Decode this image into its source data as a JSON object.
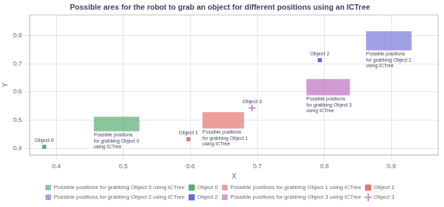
{
  "chart_data": {
    "type": "scatter",
    "title": "Possible ares for the robot to grab an object for different positions using an ICTree",
    "xlabel": "X",
    "ylabel": "Y",
    "xlim": [
      0.36,
      0.97
    ],
    "ylim": [
      0.375,
      0.875
    ],
    "xticks": [
      0.4,
      0.5,
      0.6,
      0.7,
      0.8,
      0.9
    ],
    "yticks": [
      0.4,
      0.5,
      0.6,
      0.7,
      0.8
    ],
    "grid": true,
    "legend": "bottom",
    "series": [
      {
        "name": "Possible positions for grabbing Object 0 using ICTree",
        "type": "rectangle",
        "color": "#5aac74",
        "x": 0.456,
        "y": 0.46,
        "width": 0.068,
        "height": 0.052,
        "annotation": "Possible positions\nfor grabbing Object 0\nusing ICTree"
      },
      {
        "name": "Object 0",
        "type": "scatter",
        "color": "#5aac74",
        "marker": "square",
        "x": [
          0.382
        ],
        "y": [
          0.405
        ],
        "labels": [
          "Object 0"
        ]
      },
      {
        "name": "Possible positions for grabbing Object 1 using ICTree",
        "type": "rectangle",
        "color": "#e87575",
        "x": 0.618,
        "y": 0.47,
        "width": 0.062,
        "height": 0.058,
        "annotation": "Possible positions\nfor grabbing Object 1\nusing ICTree"
      },
      {
        "name": "Object 1",
        "type": "scatter",
        "color": "#e87575",
        "marker": "square",
        "x": [
          0.597
        ],
        "y": [
          0.432
        ],
        "labels": [
          "Object 1"
        ]
      },
      {
        "name": "Possible positions for grabbing Object 2 using ICTree",
        "type": "rectangle",
        "color": "#7878d8",
        "x": 0.862,
        "y": 0.748,
        "width": 0.068,
        "height": 0.068,
        "annotation": "Possible positions\nfor grabbing Object 2\nusing ICTree"
      },
      {
        "name": "Object 2",
        "type": "scatter",
        "color": "#6070d8",
        "marker": "square",
        "x": [
          0.793
        ],
        "y": [
          0.713
        ],
        "labels": [
          "Object 2"
        ]
      },
      {
        "name": "Possible positions for grabbing Object 3 using ICTree",
        "type": "rectangle",
        "color": "#c070c0",
        "x": 0.773,
        "y": 0.588,
        "width": 0.065,
        "height": 0.058,
        "annotation": "Possible positions\nfor grabbing Object 3\nusing ICTree"
      },
      {
        "name": "Object 3",
        "type": "scatter",
        "color": "#c070c0",
        "marker": "plus",
        "x": [
          0.692
        ],
        "y": [
          0.543
        ],
        "labels": [
          "Object 3"
        ]
      }
    ]
  }
}
